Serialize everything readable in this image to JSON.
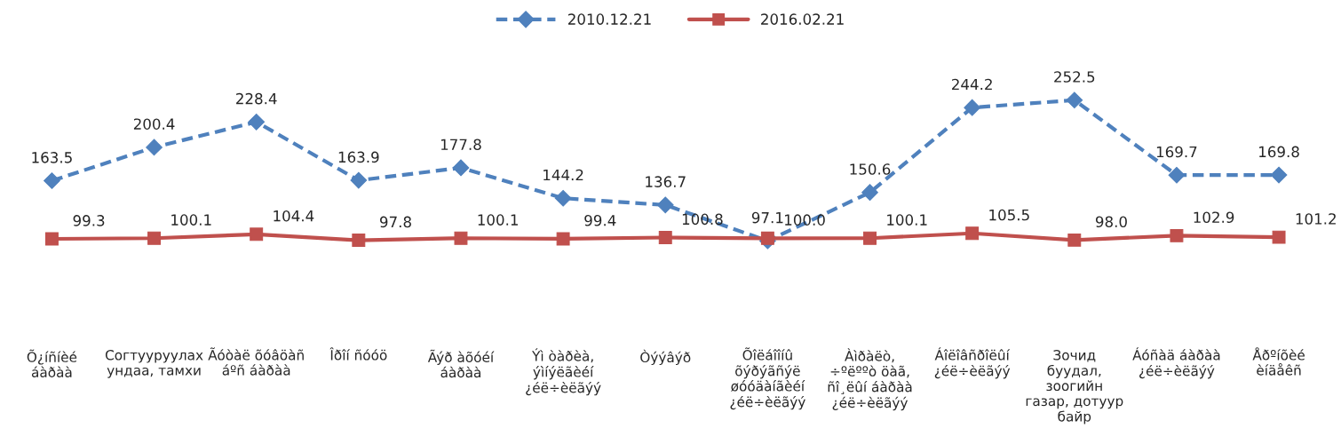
{
  "chart_data": {
    "type": "line",
    "categories": [
      "Õ¿íñíèé\náàðàà",
      "Согтууруулах\nундаа, тамхи",
      "Ãóòàë õóâöàñ\náºñ áàðàà",
      "Îðîí ñóóö",
      "Ãýð àõóéí\náàðàà",
      "Ýì òàðèà,\nýìíýëãèéí\n¿éë÷èëãýý",
      "Òýýâýð",
      "Õîëáîîíû\nõýðýãñýë\nøóóäàíãèéí\n¿éë÷èëãýý",
      "Àìðàëò,\n÷ºëººò öàã,\nñî¸ëûí áàðàà\n¿éë÷èëãýý",
      "Áîëîâñðîëûí\n¿éë÷èëãýý",
      "Зочид\nбуудал,\nзоогийн\nгазар, дотуур\nбайр",
      "Áóñàä áàðàà\n¿éë÷èëãýý",
      "Åðºíõèé\nèíäåêñ"
    ],
    "series": [
      {
        "name": "2010.12.21",
        "color": "#4f81bd",
        "marker": "diamond",
        "line_style": "dashed",
        "values": [
          163.5,
          200.4,
          228.4,
          163.9,
          177.8,
          144.2,
          136.7,
          97.1,
          150.6,
          244.2,
          252.5,
          169.7,
          169.8
        ]
      },
      {
        "name": "2016.02.21",
        "color": "#c0504d",
        "marker": "square",
        "line_style": "solid",
        "values": [
          99.3,
          100.1,
          104.4,
          97.8,
          100.1,
          99.4,
          100.8,
          100.0,
          100.1,
          105.5,
          98.0,
          102.9,
          101.2
        ],
        "value_labels": [
          "99.3",
          "100.1",
          "104.4",
          "97.8",
          "100.1",
          "99.4",
          "100.8",
          "100.0",
          "100.1",
          "105.5",
          "98.0",
          "102.9",
          "101.2"
        ]
      }
    ],
    "data_labels": true,
    "legend": "top",
    "grid": false
  }
}
